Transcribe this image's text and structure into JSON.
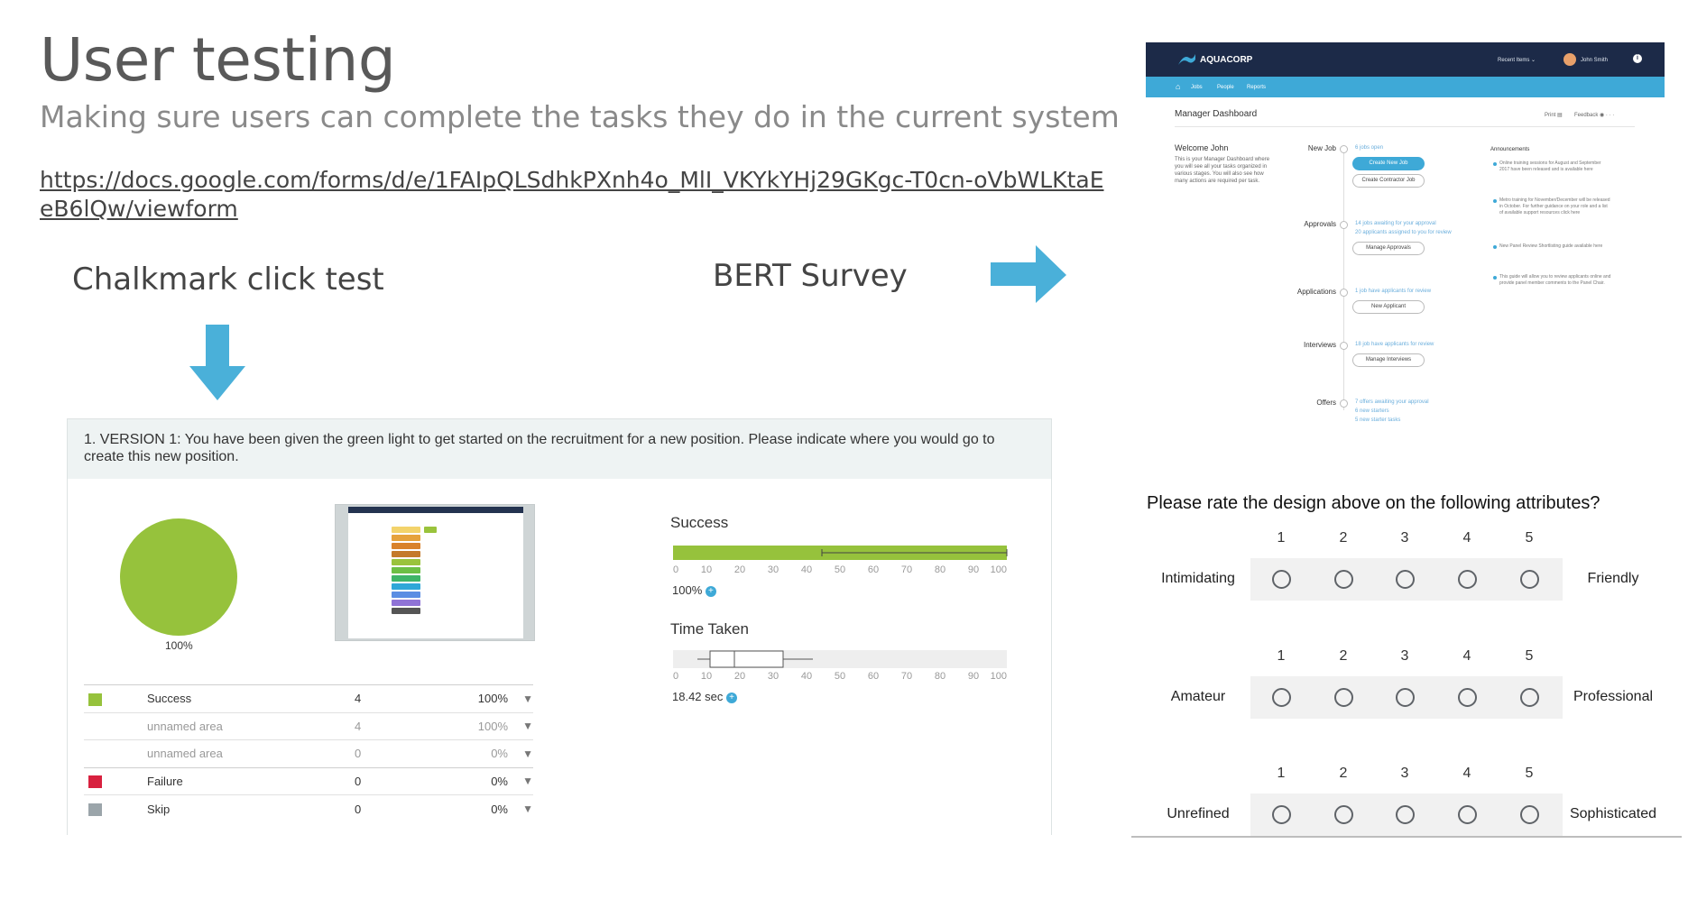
{
  "slide": {
    "title": "User testing",
    "subtitle": "Making sure users can complete the tasks they do in the current system",
    "link": "https://docs.google.com/forms/d/e/1FAIpQLSdhkPXnh4o_MlI_VKYkYHj29GKgc-T0cn-oVbWLKtaEeB6lQw/viewform",
    "chalkmark_label": "Chalkmark click test",
    "bert_label": "BERT Survey"
  },
  "chalkmark": {
    "question": "1. VERSION 1: You have been given the green light to get started on the recruitment for a new position. Please indicate where you would go to create this new position.",
    "pie_label": "100%",
    "rows": [
      {
        "label": "Success",
        "count": "4",
        "pct": "100%",
        "swatch": "#96c23c"
      },
      {
        "label": "unnamed area",
        "count": "4",
        "pct": "100%",
        "swatch": ""
      },
      {
        "label": "unnamed area",
        "count": "0",
        "pct": "0%",
        "swatch": ""
      },
      {
        "label": "Failure",
        "count": "0",
        "pct": "0%",
        "swatch": "#d8213f"
      },
      {
        "label": "Skip",
        "count": "0",
        "pct": "0%",
        "swatch": "#9ba5aa"
      }
    ],
    "success": {
      "title": "Success",
      "value": "100%",
      "fill_fraction": 1.0,
      "ticks": [
        "0",
        "10",
        "20",
        "30",
        "40",
        "50",
        "60",
        "70",
        "80",
        "90",
        "100"
      ]
    },
    "time": {
      "title": "Time Taken",
      "value": "18.42 sec",
      "ticks": [
        "0",
        "10",
        "20",
        "30",
        "40",
        "50",
        "60",
        "70",
        "80",
        "90",
        "100"
      ]
    },
    "colors": {
      "success": "#96c23c",
      "failure": "#d8213f",
      "skip": "#9ba5aa"
    }
  },
  "aquacorp": {
    "brand": "AQUACORP",
    "recent_items": "Recent Items",
    "user": "John Smith",
    "nav": [
      "Jobs",
      "People",
      "Reports"
    ],
    "page_title": "Manager Dashboard",
    "print": "Print",
    "feedback": "Feedback",
    "welcome_title": "Welcome John",
    "welcome_text": "This is your Manager Dashboard where you will see all your tasks organized in various stages. You will also see how many actions are required per task.",
    "sections": [
      {
        "name": "New Job",
        "items": [
          "6 jobs open"
        ],
        "buttons": [
          "Create New Job",
          "Create Contractor Job"
        ]
      },
      {
        "name": "Approvals",
        "items": [
          "14 jobs awaiting for your approval",
          "20 applicants assigned to you for review"
        ],
        "buttons": [
          "Manage Approvals"
        ]
      },
      {
        "name": "Applications",
        "items": [
          "1 job have applicants for review"
        ],
        "buttons": [
          "New Applicant"
        ]
      },
      {
        "name": "Interviews",
        "items": [
          "18 job have applicants for review"
        ],
        "buttons": [
          "Manage Interviews"
        ]
      },
      {
        "name": "Offers",
        "items": [
          "7 offers awaiting your approval",
          "6 new starters",
          "5 new starter tasks"
        ],
        "buttons": []
      }
    ],
    "announcements_title": "Announcements",
    "announcements": [
      "Online training sessions for August and September 2017 have been released and is available here",
      "Metro training for November/December will be released in October. For further guidance on your role and a list of available support resources click here",
      "New Panel Review Shortlisting guide available here",
      "This guide will allow you to review applicants online and provide panel member comments to the Panel Chair."
    ]
  },
  "survey": {
    "question": "Please rate the design above on the following attributes?",
    "scale": [
      "1",
      "2",
      "3",
      "4",
      "5"
    ],
    "rows": [
      {
        "left": "Intimidating",
        "right": "Friendly"
      },
      {
        "left": "Amateur",
        "right": "Professional"
      },
      {
        "left": "Unrefined",
        "right": "Sophisticated"
      }
    ]
  }
}
